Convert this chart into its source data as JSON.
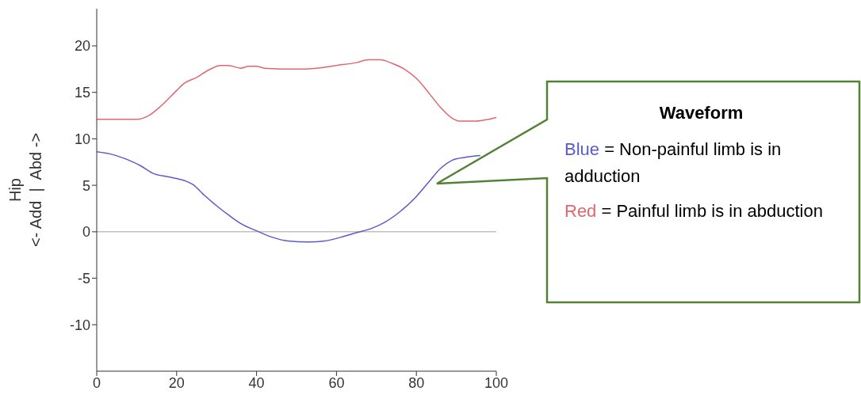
{
  "chart_data": {
    "type": "line",
    "ylabel": "Hip\n<- Add  |  Abd ->",
    "xlim": [
      0,
      100
    ],
    "xticks": [
      0,
      20,
      40,
      60,
      80,
      100
    ],
    "ylim": [
      -15,
      24
    ],
    "yticks": [
      -10,
      -5,
      0,
      5,
      10,
      15,
      20
    ],
    "marker": "none",
    "line_style": "solid",
    "ref_lines": [
      {
        "axis": "y",
        "value": 0,
        "color": "#c0c0c0"
      }
    ],
    "series": [
      {
        "color": "#e06670",
        "x": [
          0,
          5,
          10,
          13,
          16,
          20,
          22,
          25,
          28,
          31,
          33,
          36,
          38,
          40,
          42,
          50,
          55,
          60,
          65,
          68,
          71,
          74,
          77,
          80,
          83,
          86,
          89,
          91,
          95,
          98,
          100
        ],
        "values": [
          12.1,
          12.1,
          12.1,
          12.5,
          13.5,
          15.2,
          16,
          16.6,
          17.4,
          17.9,
          17.9,
          17.6,
          17.8,
          17.8,
          17.6,
          17.5,
          17.6,
          17.9,
          18.2,
          18.5,
          18.5,
          18.1,
          17.5,
          16.5,
          15,
          13.4,
          12.2,
          11.9,
          11.9,
          12.1,
          12.3
        ]
      },
      {
        "color": "#5a5acc",
        "x": [
          0,
          4,
          8,
          11,
          14,
          18,
          22,
          24,
          27,
          30,
          33,
          36,
          40,
          44,
          48,
          53,
          57,
          61,
          65,
          69,
          72,
          76,
          80,
          83,
          86,
          89,
          92,
          96
        ],
        "values": [
          8.6,
          8.3,
          7.7,
          7.1,
          6.3,
          5.9,
          5.5,
          5.1,
          3.9,
          2.8,
          1.8,
          0.9,
          0.1,
          -0.6,
          -1.0,
          -1.1,
          -1.0,
          -0.6,
          -0.1,
          0.4,
          1.0,
          2.2,
          3.8,
          5.3,
          6.8,
          7.7,
          8.0,
          8.2
        ]
      }
    ],
    "annotations": [
      "Waveform",
      "Blue = Non-painful limb is in adduction",
      "Red = Painful limb is in abduction"
    ]
  }
}
